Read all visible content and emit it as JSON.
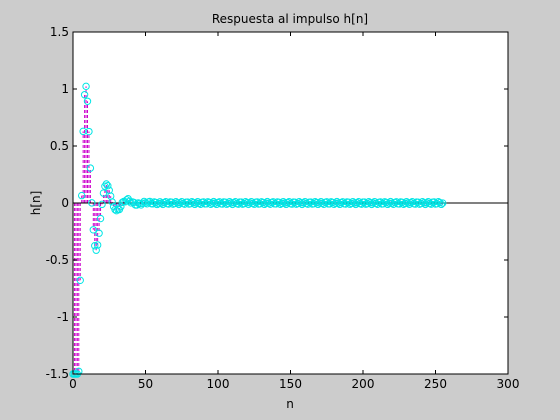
{
  "chart_data": {
    "type": "stem",
    "title": "Respuesta al impulso h[n]",
    "xlabel": "n",
    "ylabel": "h[n]",
    "xlim": [
      0,
      300
    ],
    "ylim": [
      -1.5,
      1.5
    ],
    "x_ticks": [
      0,
      50,
      100,
      150,
      200,
      250,
      300
    ],
    "x_tick_labels": [
      "0",
      "50",
      "100",
      "150",
      "200",
      "250",
      "300"
    ],
    "y_ticks": [
      -1.5,
      -1,
      -0.5,
      0,
      0.5,
      1,
      1.5
    ],
    "y_tick_labels": [
      "-1.5",
      "-1",
      "-0.5",
      "0",
      "0.5",
      "1",
      "1.5"
    ],
    "grid": false,
    "n_samples": 256,
    "x_start": 0,
    "decay": 0.88,
    "period": 14.2,
    "phase": 2.1,
    "amplitude": 3.3,
    "floor_noise": 0.012,
    "colors": {
      "background": "#cccccc",
      "axes_face": "#ffffff",
      "axes_edge": "#000000",
      "stem_line": "#cc00cc",
      "marker": "#00e5e5",
      "baseline": "#000000"
    }
  }
}
